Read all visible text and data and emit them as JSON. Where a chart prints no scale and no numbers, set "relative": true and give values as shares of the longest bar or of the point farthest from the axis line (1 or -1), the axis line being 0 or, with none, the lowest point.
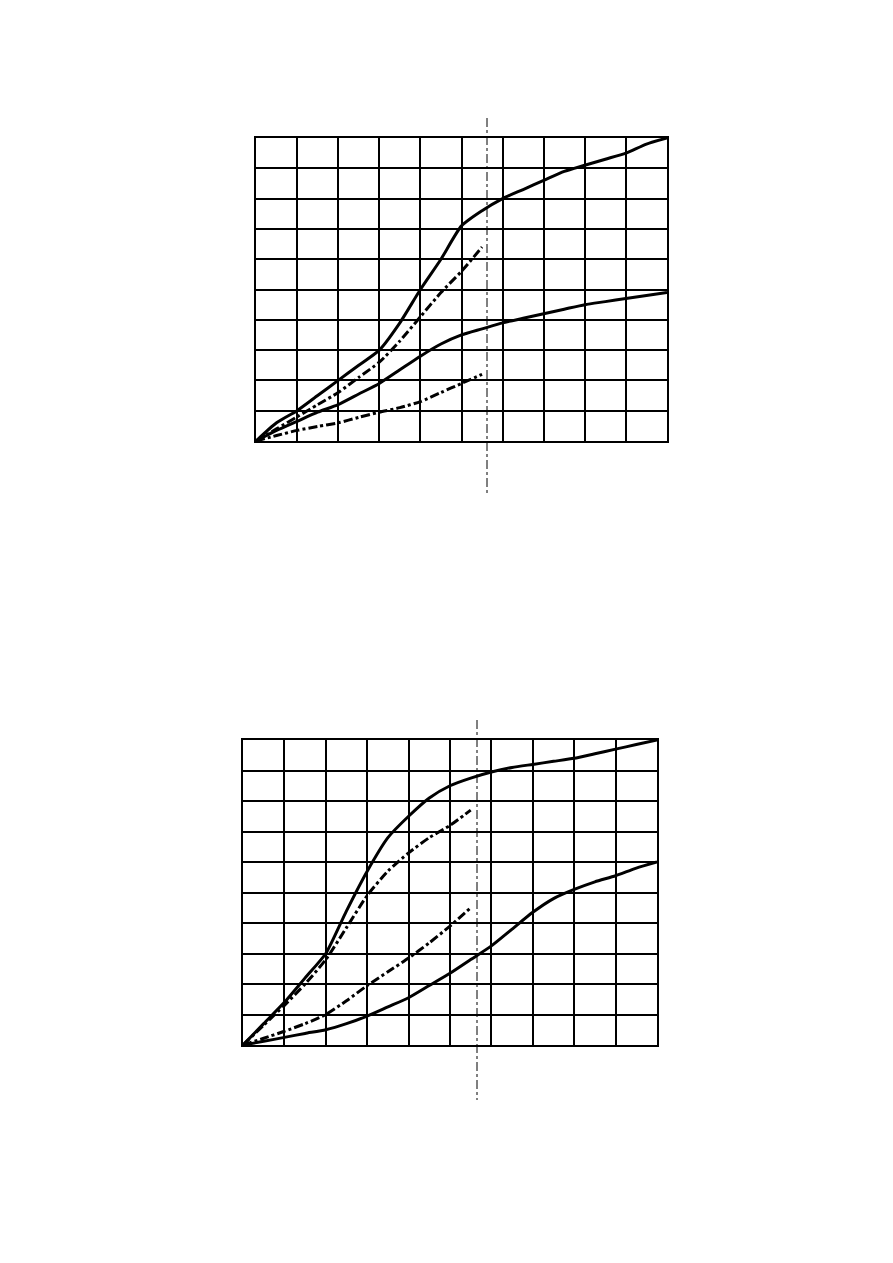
{
  "chart_data": [
    {
      "type": "line",
      "relative": true,
      "grid": true,
      "line_style": "solid",
      "marker": "none",
      "categories": [
        null,
        null,
        null,
        null,
        null,
        null,
        null,
        null,
        null,
        null,
        null,
        null,
        null,
        null,
        null,
        null,
        null,
        null,
        null,
        null,
        null
      ],
      "series": [
        {
          "color": "#000000",
          "values": [
            0,
            0.06,
            0.1,
            0.15,
            0.2,
            0.25,
            0.3,
            0.39,
            0.5,
            0.6,
            0.71,
            0.76,
            0.8,
            0.83,
            0.86,
            0.89,
            0.91,
            0.93,
            0.95,
            0.98,
            1.0
          ]
        },
        {
          "color": "#000000",
          "values": [
            0,
            0.035,
            0.065,
            0.095,
            0.12,
            0.155,
            0.19,
            0.235,
            0.28,
            0.32,
            0.35,
            0.37,
            0.39,
            0.405,
            0.42,
            0.435,
            0.45,
            0.46,
            0.47,
            0.48,
            0.49
          ]
        },
        {
          "color": "#000000",
          "line_style": "dashed",
          "values": [
            0,
            0.04,
            0.08,
            0.12,
            0.16,
            0.21,
            0.26,
            0.33,
            0.41,
            0.49,
            0.56,
            0.64,
            null,
            null,
            null,
            null,
            null,
            null,
            null,
            null,
            null
          ]
        },
        {
          "color": "#000000",
          "line_style": "dashed",
          "values": [
            0,
            0.018,
            0.035,
            0.048,
            0.06,
            0.078,
            0.095,
            0.11,
            0.13,
            0.16,
            0.19,
            0.22,
            null,
            null,
            null,
            null,
            null,
            null,
            null,
            null,
            null
          ]
        }
      ]
    },
    {
      "type": "line",
      "relative": true,
      "grid": true,
      "line_style": "solid",
      "marker": "none",
      "categories": [
        null,
        null,
        null,
        null,
        null,
        null,
        null,
        null,
        null,
        null,
        null,
        null,
        null,
        null,
        null,
        null,
        null,
        null,
        null,
        null,
        null
      ],
      "series": [
        {
          "color": "#000000",
          "values": [
            0,
            0.07,
            0.14,
            0.22,
            0.3,
            0.44,
            0.57,
            0.68,
            0.75,
            0.81,
            0.85,
            0.875,
            0.895,
            0.91,
            0.92,
            0.93,
            0.94,
            0.955,
            0.97,
            0.985,
            1.0
          ]
        },
        {
          "color": "#000000",
          "values": [
            0,
            0.012,
            0.025,
            0.038,
            0.05,
            0.07,
            0.095,
            0.125,
            0.155,
            0.195,
            0.235,
            0.28,
            0.325,
            0.38,
            0.435,
            0.48,
            0.51,
            0.535,
            0.555,
            0.58,
            0.6
          ]
        },
        {
          "color": "#000000",
          "line_style": "dashed",
          "values": [
            0,
            0.065,
            0.13,
            0.2,
            0.28,
            0.385,
            0.49,
            0.57,
            0.63,
            0.68,
            0.72,
            0.77,
            null,
            null,
            null,
            null,
            null,
            null,
            null,
            null,
            null
          ]
        },
        {
          "color": "#000000",
          "line_style": "dashed",
          "values": [
            0,
            0.022,
            0.045,
            0.07,
            0.1,
            0.145,
            0.195,
            0.24,
            0.285,
            0.335,
            0.39,
            0.45,
            null,
            null,
            null,
            null,
            null,
            null,
            null,
            null,
            null
          ]
        }
      ]
    }
  ]
}
